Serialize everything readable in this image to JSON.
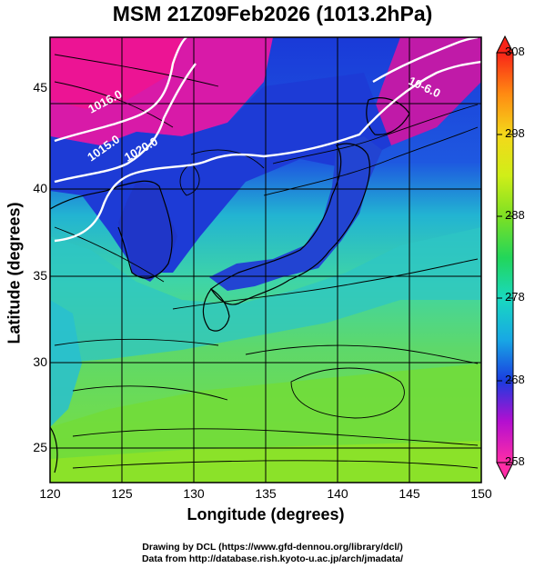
{
  "title": "MSM 21Z09Feb2026 (1013.2hPa)",
  "xlabel": "Longitude (degrees)",
  "ylabel": "Latitude  (degrees)",
  "x_ticks": [
    "120",
    "125",
    "130",
    "135",
    "140",
    "145",
    "150"
  ],
  "x_tick_values": [
    120,
    125,
    130,
    135,
    140,
    145,
    150
  ],
  "y_ticks": [
    "25",
    "30",
    "35",
    "40",
    "45"
  ],
  "y_tick_values": [
    25,
    30,
    35,
    40,
    45
  ],
  "colorbar": {
    "ticks": [
      "308",
      "298",
      "288",
      "278",
      "268",
      "258"
    ],
    "tick_values": [
      308,
      298,
      288,
      278,
      268,
      258
    ],
    "range": [
      258,
      308
    ]
  },
  "contour_labels": [
    "1016.0",
    "1015.0",
    "1020.0",
    "10-6.0"
  ],
  "footer": {
    "line1": "Drawing by DCL (https://www.gfd-dennou.org/library/dcl/)",
    "line2": "Data from http://database.rish.kyoto-u.ac.jp/arch/jmadata/"
  },
  "map": {
    "lon_range": [
      120,
      150
    ],
    "lat_range": [
      22.5,
      48
    ],
    "colors": {
      "magenta": "#e0109c",
      "blue": "#1e3ad8",
      "cyan": "#22c4c8",
      "green": "#5fd84a",
      "lime": "#86e030",
      "coast": "#000000",
      "contour": "#ffffff"
    }
  }
}
